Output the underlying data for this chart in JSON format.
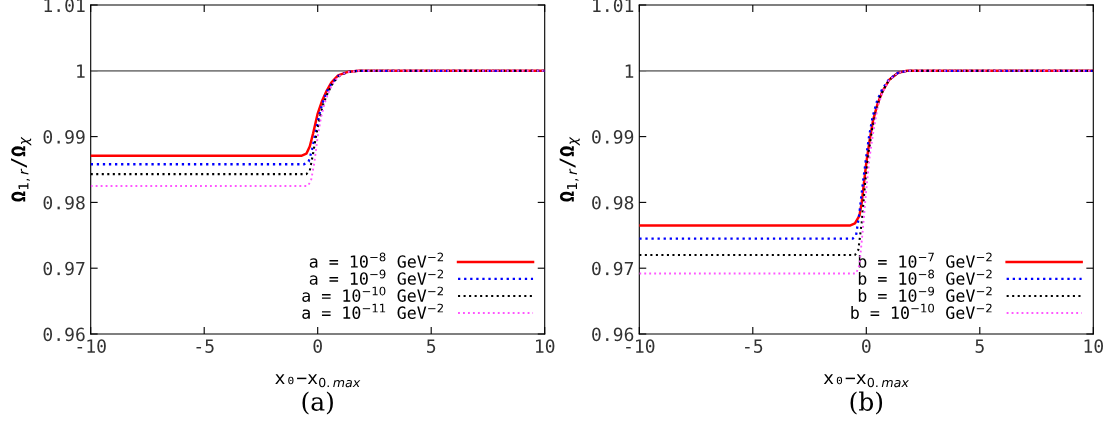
{
  "chart_data": [
    {
      "type": "line",
      "xlabel": "x₀−x$_{0.max}$",
      "ylabel": "Ω$_{1,r}$/Ω$_{χ}$",
      "xlim": [
        -10,
        10
      ],
      "xticks": [
        -10,
        -5,
        0,
        5,
        10
      ],
      "ylim": [
        0.96,
        1.01
      ],
      "yticks": [
        0.96,
        0.97,
        0.98,
        0.99,
        {
          "value": 1,
          "label": "1"
        },
        1.01
      ],
      "grid": false,
      "legend": "bottom right",
      "annotations": [
        "(a)"
      ],
      "ref_lines": [
        {
          "axis": "y",
          "value": 1,
          "color": "#808080"
        }
      ],
      "series": [
        {
          "name": "a = 10$^{−8}$ GeV$^{−2}$",
          "color": "#ff0000",
          "line_style": "solid",
          "x": [
            -10,
            -0.7,
            -0.5,
            -0.35,
            -0.2,
            0,
            0.2,
            0.4,
            0.6,
            0.9,
            1.3,
            1.8,
            10
          ],
          "values": [
            0.9871,
            0.9871,
            0.9874,
            0.9885,
            0.9905,
            0.9935,
            0.9955,
            0.997,
            0.9982,
            0.9993,
            0.9998,
            1.0,
            1.0
          ]
        },
        {
          "name": "a = 10$^{−9}$ GeV$^{−2}$",
          "color": "#0000ff",
          "line_style": "dotted",
          "x": [
            -10,
            -0.6,
            -0.4,
            -0.25,
            -0.1,
            0.05,
            0.2,
            0.4,
            0.6,
            0.9,
            1.3,
            1.8,
            10
          ],
          "values": [
            0.9858,
            0.9858,
            0.9862,
            0.988,
            0.9905,
            0.993,
            0.995,
            0.9968,
            0.998,
            0.9992,
            0.9998,
            1.0,
            1.0
          ]
        },
        {
          "name": "a = 10$^{−10}$ GeV$^{−2}$",
          "color": "#000000",
          "line_style": "dotted",
          "x": [
            -10,
            -0.5,
            -0.35,
            -0.2,
            -0.05,
            0.1,
            0.25,
            0.45,
            0.65,
            0.9,
            1.3,
            1.8,
            10
          ],
          "values": [
            0.9843,
            0.9843,
            0.9848,
            0.9875,
            0.9905,
            0.993,
            0.995,
            0.9967,
            0.998,
            0.9991,
            0.9998,
            1.0,
            1.0
          ]
        },
        {
          "name": "a = 10$^{−11}$ GeV$^{−2}$",
          "color": "#ff55ff",
          "line_style": "dotted",
          "x": [
            -10,
            -0.45,
            -0.3,
            -0.15,
            0,
            0.15,
            0.3,
            0.45,
            0.65,
            0.9,
            1.3,
            1.8,
            10
          ],
          "values": [
            0.9825,
            0.9825,
            0.9832,
            0.986,
            0.99,
            0.993,
            0.995,
            0.9965,
            0.998,
            0.9991,
            0.9998,
            1.0,
            1.0
          ]
        }
      ]
    },
    {
      "type": "line",
      "xlabel": "x₀−x$_{0.max}$",
      "ylabel": "Ω$_{1,r}$/Ω$_{χ}$",
      "xlim": [
        -10,
        10
      ],
      "xticks": [
        -10,
        -5,
        0,
        5,
        10
      ],
      "ylim": [
        0.96,
        1.01
      ],
      "yticks": [
        0.96,
        0.97,
        0.98,
        0.99,
        {
          "value": 1,
          "label": "1"
        },
        1.01
      ],
      "grid": false,
      "legend": "bottom right",
      "annotations": [
        "(b)"
      ],
      "ref_lines": [
        {
          "axis": "y",
          "value": 1,
          "color": "#808080"
        }
      ],
      "series": [
        {
          "name": "b = 10$^{−7}$ GeV$^{−2}$",
          "color": "#ff0000",
          "line_style": "solid",
          "x": [
            -10,
            -0.7,
            -0.5,
            -0.3,
            -0.2,
            0,
            0.15,
            0.3,
            0.5,
            0.7,
            1.0,
            1.4,
            1.8,
            10
          ],
          "values": [
            0.9765,
            0.9765,
            0.9768,
            0.978,
            0.98,
            0.986,
            0.9895,
            0.9925,
            0.995,
            0.9968,
            0.9986,
            0.9997,
            1.0,
            1.0
          ]
        },
        {
          "name": "b = 10$^{−8}$ GeV$^{−2}$",
          "color": "#0000ff",
          "line_style": "dotted",
          "x": [
            -10,
            -0.6,
            -0.45,
            -0.3,
            -0.15,
            0,
            0.12,
            0.28,
            0.48,
            0.7,
            1.0,
            1.4,
            1.8,
            10
          ],
          "values": [
            0.9745,
            0.9745,
            0.975,
            0.9785,
            0.983,
            0.987,
            0.99,
            0.993,
            0.9955,
            0.9972,
            0.9987,
            0.9997,
            1.0,
            1.0
          ]
        },
        {
          "name": "b = 10$^{−9}$ GeV$^{−2}$",
          "color": "#000000",
          "line_style": "dotted",
          "x": [
            -10,
            -0.5,
            -0.35,
            -0.2,
            -0.05,
            0.1,
            0.25,
            0.4,
            0.6,
            0.8,
            1.0,
            1.4,
            1.8,
            10
          ],
          "values": [
            0.972,
            0.972,
            0.9728,
            0.977,
            0.983,
            0.9875,
            0.991,
            0.9935,
            0.996,
            0.9974,
            0.9986,
            0.9997,
            1.0,
            1.0
          ]
        },
        {
          "name": "b = 10$^{−10}$ GeV$^{−2}$",
          "color": "#ff55ff",
          "line_style": "dotted",
          "x": [
            -10,
            -0.45,
            -0.3,
            -0.15,
            0,
            0.15,
            0.3,
            0.5,
            0.7,
            1.0,
            1.4,
            1.8,
            10
          ],
          "values": [
            0.9692,
            0.9692,
            0.9705,
            0.976,
            0.982,
            0.987,
            0.9905,
            0.9945,
            0.9966,
            0.9986,
            0.9997,
            1.0,
            1.0
          ]
        }
      ]
    }
  ]
}
